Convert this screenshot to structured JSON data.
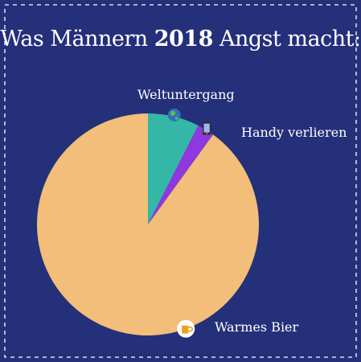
{
  "title": {
    "prefix": "Was Männern ",
    "year": "2018",
    "suffix": " Angst macht:"
  },
  "colors": {
    "background": "#25307a",
    "border": "#ffffff"
  },
  "chart_data": {
    "type": "pie",
    "title": "Was Männern 2018 Angst macht:",
    "slices": [
      {
        "label": "Weltuntergang",
        "value": 7.5,
        "color": "#35b7a7",
        "icon": "globe-icon"
      },
      {
        "label": "Handy verlieren",
        "value": 2.5,
        "color": "#8f38de",
        "icon": "phone-icon"
      },
      {
        "label": "Warmes Bier",
        "value": 90,
        "color": "#f2be79",
        "icon": "beer-icon"
      }
    ]
  }
}
